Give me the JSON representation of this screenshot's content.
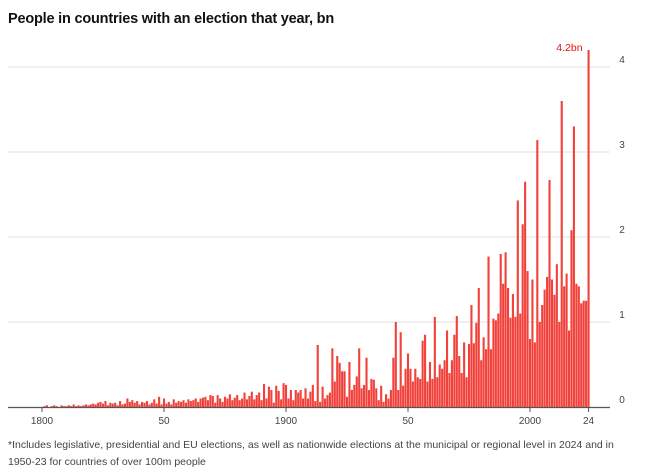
{
  "chart_data": {
    "type": "bar",
    "title": "People in countries with an election that year, bn",
    "xlabel": "",
    "ylabel": "",
    "ylim": [
      0,
      4.2
    ],
    "yticks": [
      "0",
      "1",
      "2",
      "3",
      "4"
    ],
    "xticks": [
      {
        "year": 1800,
        "label": "1800"
      },
      {
        "year": 1850,
        "label": "50"
      },
      {
        "year": 1900,
        "label": "1900"
      },
      {
        "year": 1950,
        "label": "50"
      },
      {
        "year": 2000,
        "label": "2000"
      },
      {
        "year": 2024,
        "label": "24"
      }
    ],
    "grid": true,
    "bar_color": "#f2413a",
    "annotation_color": "#e3120b",
    "annotation": {
      "year": 2024,
      "label": "4.2bn"
    },
    "x_start": 1800,
    "values": [
      0,
      0.01,
      0.02,
      0,
      0.01,
      0.02,
      0.01,
      0,
      0.02,
      0.01,
      0.01,
      0.02,
      0.01,
      0.03,
      0.01,
      0.02,
      0.01,
      0.02,
      0.03,
      0.02,
      0.03,
      0.04,
      0.03,
      0.05,
      0.06,
      0.04,
      0.07,
      0.02,
      0.05,
      0.04,
      0.05,
      0.02,
      0.07,
      0.03,
      0.04,
      0.1,
      0.06,
      0.08,
      0.05,
      0.07,
      0.03,
      0.06,
      0.05,
      0.07,
      0.03,
      0.05,
      0.09,
      0.04,
      0.12,
      0.03,
      0.1,
      0.04,
      0.06,
      0.03,
      0.09,
      0.05,
      0.07,
      0.06,
      0.08,
      0.05,
      0.09,
      0.07,
      0.08,
      0.1,
      0.06,
      0.1,
      0.11,
      0.12,
      0.08,
      0.14,
      0.13,
      0.05,
      0.14,
      0.1,
      0.06,
      0.12,
      0.1,
      0.15,
      0.08,
      0.11,
      0.14,
      0.08,
      0.1,
      0.17,
      0.09,
      0.13,
      0.18,
      0.09,
      0.14,
      0.17,
      0.08,
      0.27,
      0.1,
      0.24,
      0.2,
      0.05,
      0.25,
      0.19,
      0.09,
      0.28,
      0.26,
      0.1,
      0.2,
      0.08,
      0.2,
      0.17,
      0.2,
      0.1,
      0.22,
      0.1,
      0.18,
      0.26,
      0.07,
      0.73,
      0.06,
      0.24,
      0.1,
      0.14,
      0.17,
      0.69,
      0.3,
      0.6,
      0.52,
      0.42,
      0.42,
      0.12,
      0.53,
      0.2,
      0.26,
      0.36,
      0.69,
      0.22,
      0.26,
      0.58,
      0.2,
      0.33,
      0.32,
      0.22,
      0.08,
      0.25,
      0.06,
      0.15,
      0.1,
      0.2,
      0.58,
      1.0,
      0.2,
      0.88,
      0.25,
      0.45,
      0.63,
      0.45,
      0.3,
      0.45,
      0.35,
      0.33,
      0.78,
      0.85,
      0.3,
      0.53,
      0.33,
      1.06,
      0.35,
      0.5,
      0.45,
      0.55,
      0.9,
      0.4,
      0.55,
      0.85,
      1.07,
      0.6,
      0.4,
      0.76,
      0.35,
      0.74,
      1.2,
      0.75,
      0.99,
      1.4,
      0.55,
      0.82,
      0.68,
      1.77,
      0.68,
      1.04,
      1.02,
      1.1,
      1.8,
      1.45,
      1.82,
      1.4,
      1.05,
      1.33,
      1.06,
      2.43,
      1.1,
      2.15,
      2.65,
      1.6,
      0.8,
      1.5,
      0.76,
      3.14,
      1.0,
      1.2,
      1.38,
      1.53,
      2.67,
      1.5,
      1.32,
      1.68,
      1.0,
      3.6,
      1.42,
      1.57,
      0.9,
      2.08,
      3.3,
      1.45,
      1.42,
      1.22,
      1.25,
      1.25,
      4.2
    ]
  },
  "footnote": "*Includes legislative, presidential and EU elections, as well as nationwide elections at the municipal or regional level in 2024 and in 1950-23 for countries of over 100m people"
}
